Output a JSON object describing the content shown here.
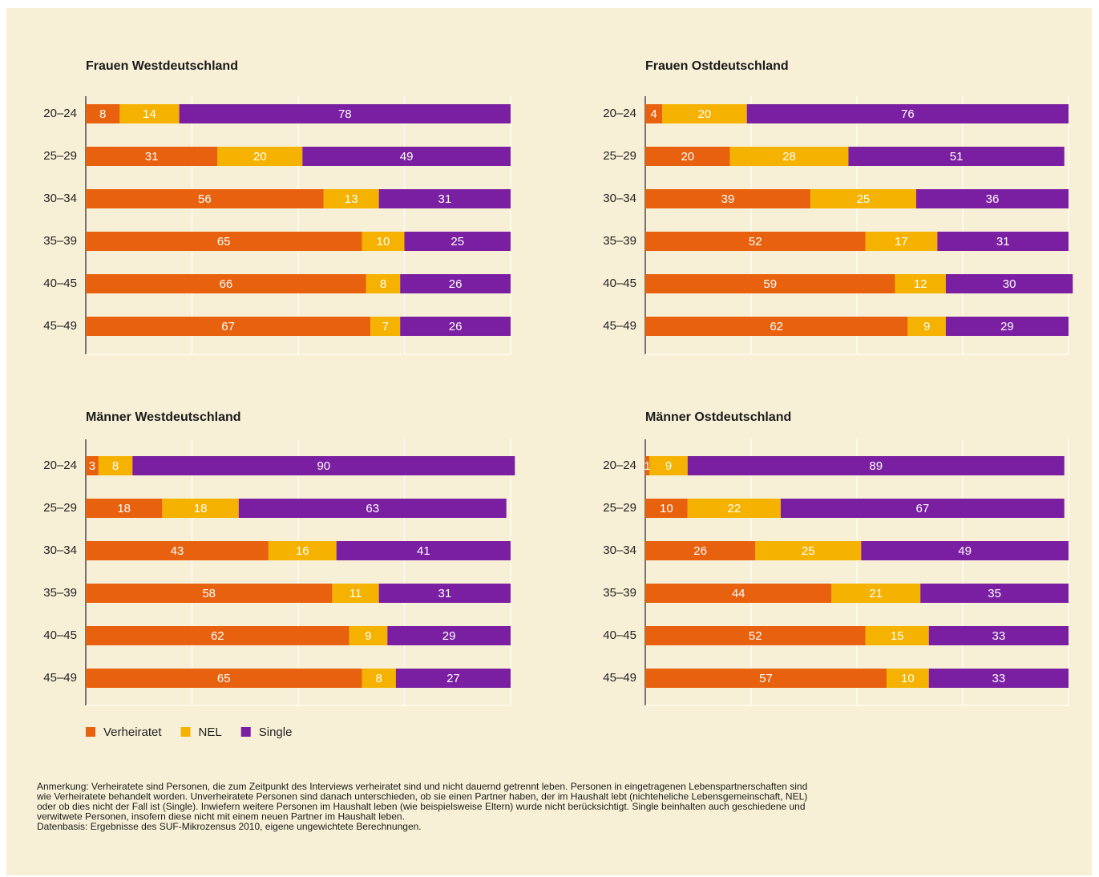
{
  "chart_data": [
    {
      "type": "bar",
      "orientation": "horizontal",
      "stacked": true,
      "title": "Frauen Westdeutschland",
      "categories": [
        "20–24",
        "25–29",
        "30–34",
        "35–39",
        "40–45",
        "45–49"
      ],
      "series": [
        {
          "name": "Verheiratet",
          "color": "#e8610e",
          "values": [
            8,
            31,
            56,
            65,
            66,
            67
          ]
        },
        {
          "name": "NEL",
          "color": "#f6b200",
          "values": [
            14,
            20,
            13,
            10,
            8,
            7
          ]
        },
        {
          "name": "Single",
          "color": "#7a1fa2",
          "values": [
            78,
            49,
            31,
            25,
            26,
            26
          ]
        }
      ],
      "xlim": [
        0,
        100
      ],
      "xticks": [
        0,
        25,
        50,
        75,
        100
      ],
      "grid": true
    },
    {
      "type": "bar",
      "orientation": "horizontal",
      "stacked": true,
      "title": "Frauen Ostdeutschland",
      "categories": [
        "20–24",
        "25–29",
        "30–34",
        "35–39",
        "40–45",
        "45–49"
      ],
      "series": [
        {
          "name": "Verheiratet",
          "color": "#e8610e",
          "values": [
            4,
            20,
            39,
            52,
            59,
            62
          ]
        },
        {
          "name": "NEL",
          "color": "#f6b200",
          "values": [
            20,
            28,
            25,
            17,
            12,
            9
          ]
        },
        {
          "name": "Single",
          "color": "#7a1fa2",
          "values": [
            76,
            51,
            36,
            31,
            30,
            29
          ]
        }
      ],
      "xlim": [
        0,
        100
      ],
      "xticks": [
        0,
        25,
        50,
        75,
        100
      ],
      "grid": true
    },
    {
      "type": "bar",
      "orientation": "horizontal",
      "stacked": true,
      "title": "Männer Westdeutschland",
      "categories": [
        "20–24",
        "25–29",
        "30–34",
        "35–39",
        "40–45",
        "45–49"
      ],
      "series": [
        {
          "name": "Verheiratet",
          "color": "#e8610e",
          "values": [
            3,
            18,
            43,
            58,
            62,
            65
          ]
        },
        {
          "name": "NEL",
          "color": "#f6b200",
          "values": [
            8,
            18,
            16,
            11,
            9,
            8
          ]
        },
        {
          "name": "Single",
          "color": "#7a1fa2",
          "values": [
            90,
            63,
            41,
            31,
            29,
            27
          ]
        }
      ],
      "xlim": [
        0,
        100
      ],
      "xticks": [
        0,
        25,
        50,
        75,
        100
      ],
      "grid": true
    },
    {
      "type": "bar",
      "orientation": "horizontal",
      "stacked": true,
      "title": "Männer Ostdeutschland",
      "categories": [
        "20–24",
        "25–29",
        "30–34",
        "35–39",
        "40–45",
        "45–49"
      ],
      "series": [
        {
          "name": "Verheiratet",
          "color": "#e8610e",
          "values": [
            1,
            10,
            26,
            44,
            52,
            57
          ]
        },
        {
          "name": "NEL",
          "color": "#f6b200",
          "values": [
            9,
            22,
            25,
            21,
            15,
            10
          ]
        },
        {
          "name": "Single",
          "color": "#7a1fa2",
          "values": [
            89,
            67,
            49,
            35,
            33,
            33
          ]
        }
      ],
      "xlim": [
        0,
        100
      ],
      "xticks": [
        0,
        25,
        50,
        75,
        100
      ],
      "grid": true
    }
  ],
  "note": [
    "Anmerkung: Verheiratete sind Personen, die zum Zeitpunkt des Interviews verheiratet sind und nicht dauernd getrennt leben. Personen in eingetragenen Lebenspartnerschaften sind",
    "wie Verheiratete behandelt worden. Unverheiratete Personen sind danach unterschieden, ob sie einen Partner haben, der im Haushalt lebt (nichteheliche Lebensgemeinschaft, NEL)",
    "oder ob dies nicht der Fall ist (Single). Inwiefern weitere Personen im Haushalt leben (wie beispielsweise Eltern) wurde nicht berücksichtigt. Single beinhalten auch geschiedene und",
    "verwitwete Personen, insofern diese nicht mit einem neuen Partner im Haushalt leben.",
    "Datenbasis: Ergebnisse des SUF-Mikrozensus 2010, eigene ungewichtete Berechnungen."
  ]
}
